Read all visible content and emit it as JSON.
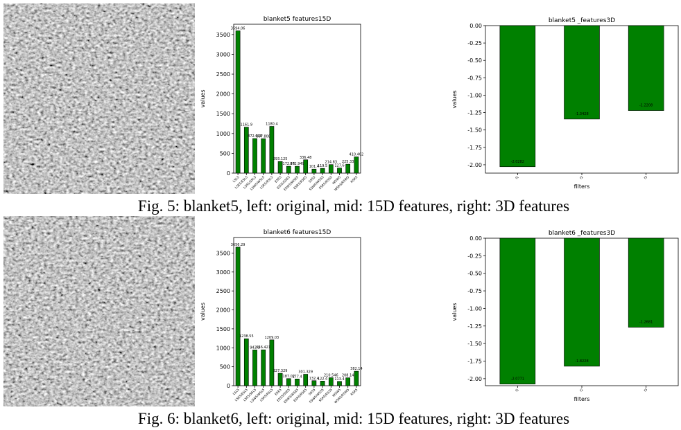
{
  "chart_data": [
    {
      "type": "bar",
      "title": "blanket5 features15D",
      "ylabel": "values",
      "categories": [
        "L5L5",
        "L5E5/E5L5",
        "L5S5/S5L5",
        "L5W5/W5L5",
        "L5R5/R5L5",
        "E5E5",
        "E5S5/S5E5",
        "E5W5/W5E5",
        "E5R5/R5E5",
        "S5S5",
        "S5W5/W5S5",
        "S5R5/R5S5",
        "W5W5",
        "W5R5/R5W5",
        "R5R5"
      ],
      "values": [
        3594.06,
        1161.9,
        872.638,
        867.808,
        1180.4,
        293.125,
        172.48,
        172.949,
        336.48,
        101.4,
        119.5,
        214.83,
        127.6,
        225.33,
        410.402
      ],
      "color": "#008000",
      "ylim": [
        0,
        3760
      ],
      "yticks": [
        0,
        500,
        1000,
        1500,
        2000,
        2500,
        3000,
        3500
      ]
    },
    {
      "type": "bar",
      "title": "blanket5 _features3D",
      "ylabel": "values",
      "xlabel": "filters",
      "categories": [
        "f1",
        "f2",
        "f3"
      ],
      "values": [
        -2.0282,
        -1.3428,
        -1.2208
      ],
      "color": "#008000",
      "ylim": [
        -2.12,
        0
      ],
      "yticks": [
        {
          "value": 0,
          "label": "0.00"
        },
        -0.25,
        {
          "value": -0.5,
          "label": "-0.50"
        },
        -0.75,
        {
          "value": -1,
          "label": "-1.00"
        },
        -1.25,
        {
          "value": -1.5,
          "label": "-1.50"
        },
        -1.75,
        {
          "value": -2,
          "label": "-2.00"
        }
      ]
    },
    {
      "type": "bar",
      "title": "blanket6 features15D",
      "ylabel": "values",
      "categories": [
        "L5L5",
        "L5E5/E5L5",
        "L5S5/S5L5",
        "L5W5/W5L5",
        "L5R5/R5L5",
        "E5E5",
        "E5S5/S5E5",
        "E5W5/W5E5",
        "E5R5/R5E5",
        "S5S5",
        "S5W5/W5S5",
        "S5R5/R5S5",
        "W5W5",
        "W5R5/R5W5",
        "R5R5"
      ],
      "values": [
        3656.29,
        1238.55,
        943.1,
        946.421,
        1209.03,
        327.329,
        187.02,
        177.4,
        301.329,
        132.4,
        122.4,
        210.546,
        113.4,
        208.14,
        382.14
      ],
      "color": "#008000",
      "ylim": [
        0,
        3910
      ],
      "yticks": [
        0,
        500,
        1000,
        1500,
        2000,
        2500,
        3000,
        3500
      ]
    },
    {
      "type": "bar",
      "title": "blanket6 _features3D",
      "ylabel": "values",
      "xlabel": "filters",
      "categories": [
        "f1",
        "f2",
        "f3"
      ],
      "values": [
        -2.0771,
        -1.8228,
        -1.2681
      ],
      "color": "#008000",
      "ylim": [
        -2.1,
        0
      ],
      "yticks": [
        {
          "value": 0,
          "label": "0.00"
        },
        -0.25,
        {
          "value": -0.5,
          "label": "-0.50"
        },
        -0.75,
        {
          "value": -1,
          "label": "-1.00"
        },
        -1.25,
        {
          "value": -1.5,
          "label": "-1.50"
        },
        -1.75,
        {
          "value": -2,
          "label": "-2.00"
        }
      ]
    }
  ],
  "captions": [
    "Fig. 5: blanket5, left: original, mid: 15D features, right: 3D features",
    "Fig. 6: blanket6, left: original, mid: 15D features, right: 3D features"
  ]
}
